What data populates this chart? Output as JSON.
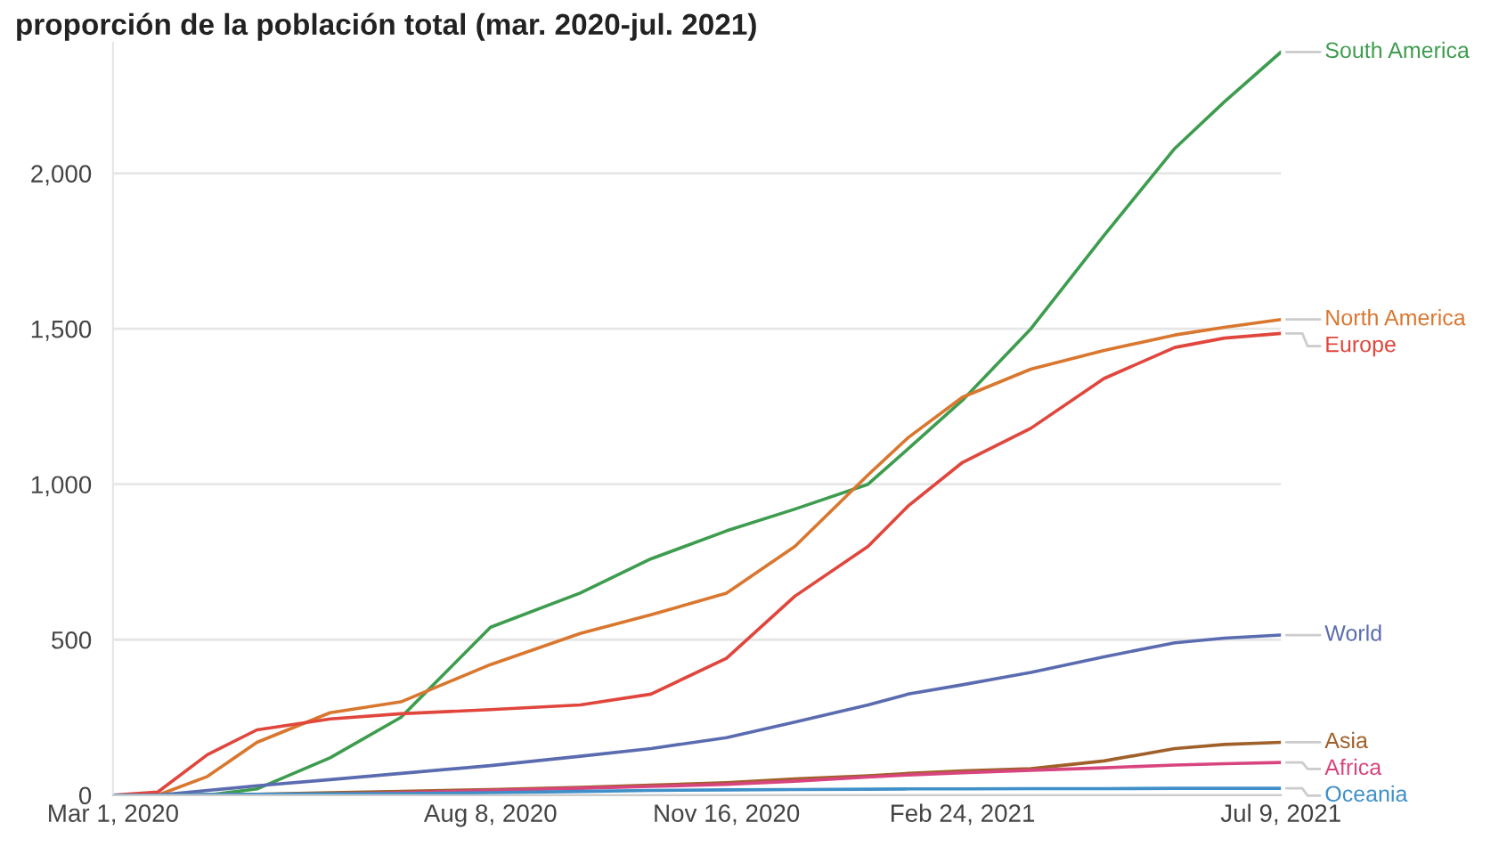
{
  "chart_data": {
    "type": "line",
    "title": "proporción de la población total (mar. 2020-jul. 2021)",
    "x": [
      "2020-03-01",
      "2020-03-20",
      "2020-04-10",
      "2020-05-01",
      "2020-06-01",
      "2020-07-01",
      "2020-08-08",
      "2020-09-15",
      "2020-10-15",
      "2020-11-16",
      "2020-12-15",
      "2021-01-15",
      "2021-02-01",
      "2021-02-24",
      "2021-03-25",
      "2021-04-25",
      "2021-05-25",
      "2021-06-15",
      "2021-07-09"
    ],
    "series": [
      {
        "name": "South America",
        "color": "#3e9c4f",
        "values": [
          0,
          0,
          0,
          20,
          120,
          250,
          540,
          650,
          760,
          850,
          920,
          1000,
          1114,
          1270,
          1500,
          1800,
          2080,
          2230,
          2390
        ]
      },
      {
        "name": "North America",
        "color": "#d9772f",
        "values": [
          0,
          0,
          60,
          170,
          265,
          300,
          420,
          520,
          580,
          650,
          800,
          1030,
          1150,
          1280,
          1370,
          1430,
          1480,
          1505,
          1530
        ]
      },
      {
        "name": "Europe",
        "color": "#e0463c",
        "values": [
          0,
          10,
          130,
          210,
          245,
          262,
          275,
          290,
          325,
          440,
          640,
          800,
          930,
          1070,
          1180,
          1340,
          1440,
          1470,
          1485
        ]
      },
      {
        "name": "World",
        "color": "#5a6bb0",
        "values": [
          0,
          0,
          15,
          30,
          50,
          70,
          95,
          125,
          150,
          185,
          235,
          290,
          325,
          355,
          395,
          445,
          490,
          505,
          515
        ]
      },
      {
        "name": "Asia",
        "color": "#a0602a",
        "values": [
          0,
          0,
          null,
          3,
          8,
          12,
          18,
          25,
          32,
          40,
          52,
          62,
          70,
          78,
          85,
          110,
          150,
          163,
          170
        ]
      },
      {
        "name": "Africa",
        "color": "#d8457e",
        "values": [
          0,
          0,
          0,
          1,
          3,
          8,
          15,
          22,
          28,
          35,
          45,
          58,
          65,
          72,
          80,
          88,
          97,
          101,
          105
        ]
      },
      {
        "name": "Oceania",
        "color": "#3f8fc8",
        "values": [
          0,
          0,
          2,
          3,
          4,
          5,
          8,
          12,
          15,
          17,
          18,
          19,
          20,
          20,
          21,
          21,
          22,
          22,
          22
        ]
      }
    ],
    "xlim": [
      "2020-03-01",
      "2021-07-09"
    ],
    "xticks": [
      {
        "value": "2020-03-01",
        "label": "Mar 1, 2020"
      },
      {
        "value": "2020-08-08",
        "label": "Aug 8, 2020"
      },
      {
        "value": "2020-11-16",
        "label": "Nov 16, 2020"
      },
      {
        "value": "2021-02-24",
        "label": "Feb 24, 2021"
      },
      {
        "value": "2021-07-09",
        "label": "Jul 9, 2021"
      }
    ],
    "ylim": [
      0,
      2420
    ],
    "yticks": [
      0,
      500,
      {
        "value": 1000,
        "label": "1,000"
      },
      {
        "value": 1500,
        "label": "1,500"
      },
      {
        "value": 2000,
        "label": "2,000"
      }
    ],
    "grid": "y",
    "legend": false
  }
}
